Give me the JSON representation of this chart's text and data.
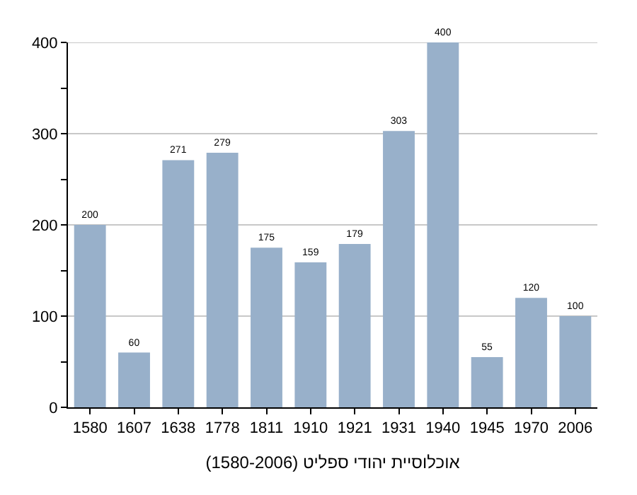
{
  "chart_data": {
    "type": "bar",
    "xlabel": "אוכלוסיית יהודי ספליט (1580-2006)",
    "categories": [
      "1580",
      "1607",
      "1638",
      "1778",
      "1811",
      "1910",
      "1921",
      "1931",
      "1940",
      "1945",
      "1970",
      "2006"
    ],
    "values": [
      200,
      60,
      271,
      279,
      175,
      159,
      179,
      303,
      400,
      55,
      120,
      100
    ],
    "color": "#98b0ca",
    "ylim": [
      0,
      400
    ],
    "yticks": [
      0,
      {
        "value": 50,
        "label": null
      },
      100,
      {
        "value": 150,
        "label": null
      },
      200,
      {
        "value": 250,
        "label": null
      },
      300,
      {
        "value": 350,
        "label": null
      },
      400
    ],
    "grid": "y",
    "data_labels": true
  }
}
